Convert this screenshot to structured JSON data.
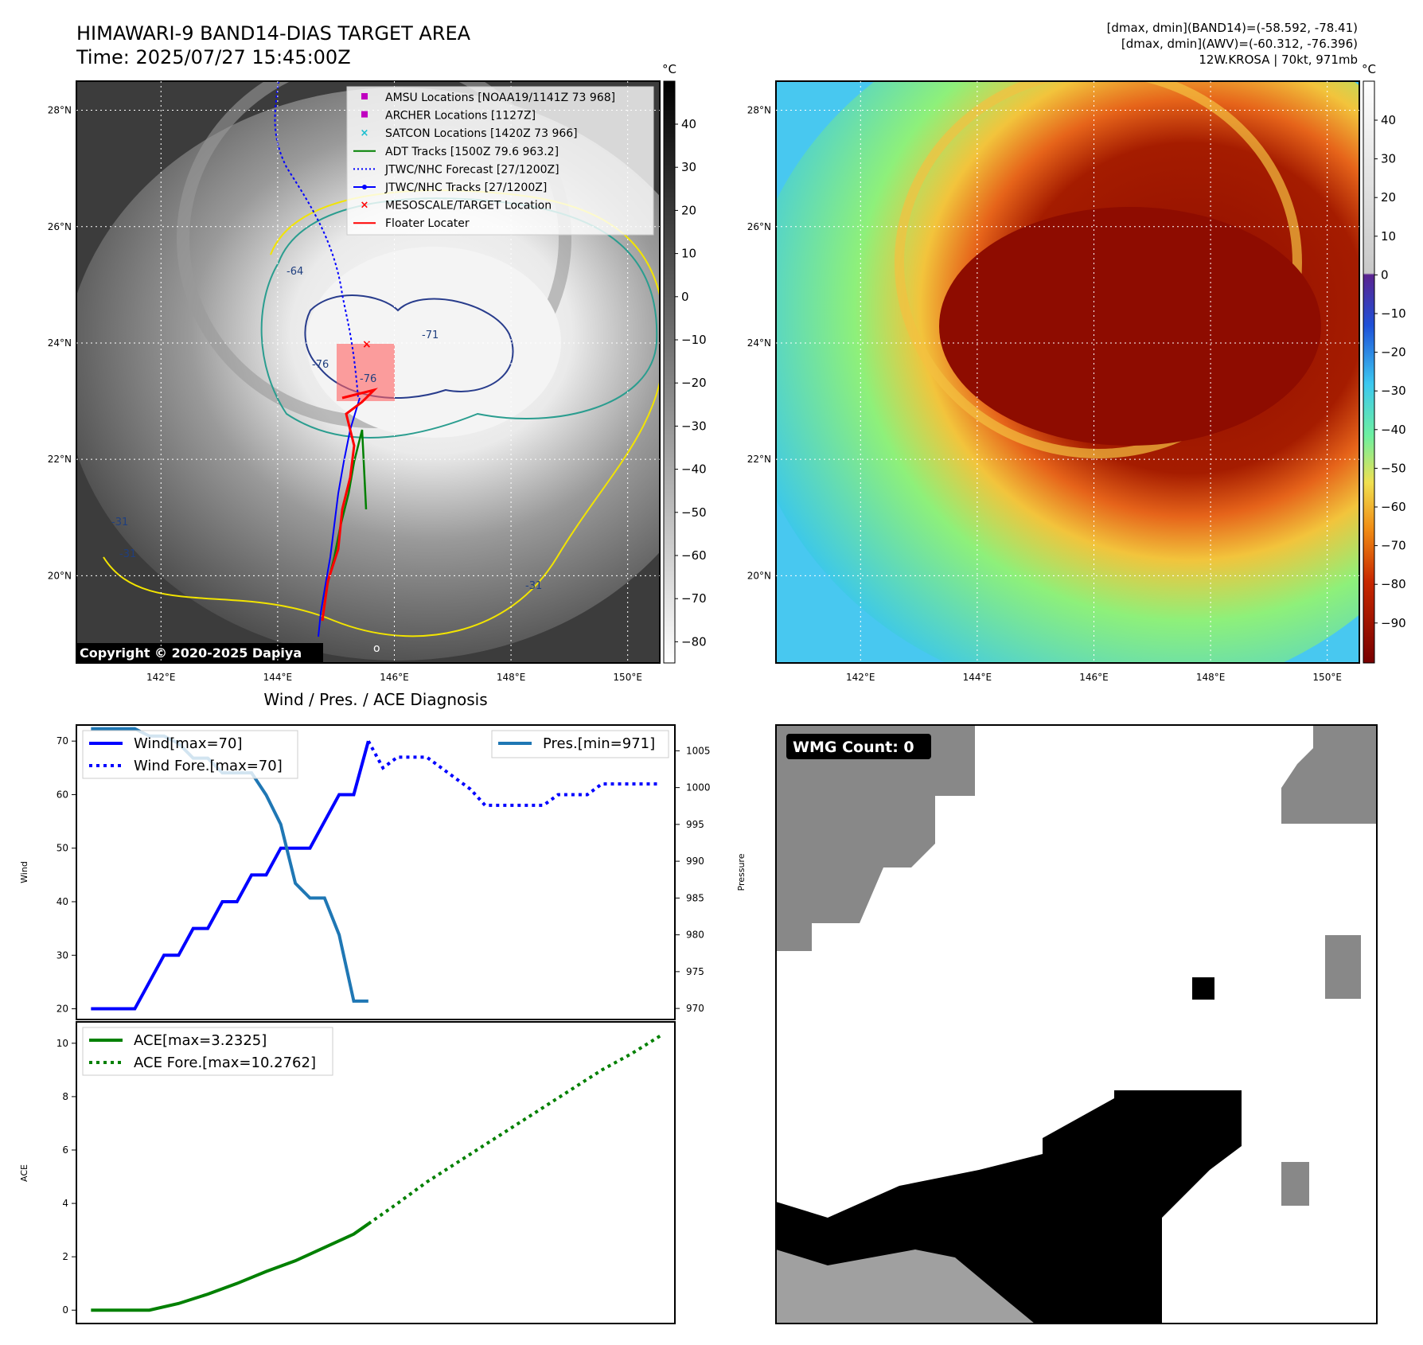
{
  "header": {
    "title_line1": "HIMAWARI-9 BAND14-DIAS TARGET AREA",
    "title_line2": "Time: 2025/07/27 15:45:00Z",
    "stats_line1": "[dmax, dmin](BAND14)=(-58.592, -78.41)",
    "stats_line2": "[dmax, dmin](AWV)=(-60.312, -76.396)",
    "stats_line3": "12W.KROSA | 70kt, 971mb"
  },
  "map_common": {
    "lon_labels": [
      "142°E",
      "144°E",
      "146°E",
      "148°E",
      "150°E"
    ],
    "lat_labels": [
      "28°N",
      "26°N",
      "24°N",
      "22°N",
      "20°N"
    ],
    "colorbar_unit": "°C"
  },
  "left_map": {
    "copyright": "Copyright © 2020-2025 Dapiya",
    "marker_glyph": "o",
    "colorbar_ticks": [
      "40",
      "30",
      "20",
      "10",
      "0",
      "−10",
      "−20",
      "−30",
      "−40",
      "−50",
      "−60",
      "−70",
      "−80"
    ],
    "contour_labels": [
      "-64",
      "-76",
      "-76",
      "-71",
      "-31",
      "-31",
      "-31"
    ],
    "legend": [
      {
        "label": "AMSU Locations [NOAA19/1141Z 73 968]",
        "marker": "square",
        "color": "#c000c0"
      },
      {
        "label": "ARCHER Locations [1127Z]",
        "marker": "square",
        "color": "#c000c0"
      },
      {
        "label": "SATCON Locations [1420Z 73 966]",
        "marker": "x",
        "color": "#17becf"
      },
      {
        "label": "ADT Tracks [1500Z 79.6 963.2]",
        "marker": "line",
        "color": "#008000"
      },
      {
        "label": "JTWC/NHC Forecast [27/1200Z]",
        "marker": "dotted",
        "color": "#0000ff"
      },
      {
        "label": "JTWC/NHC Tracks [27/1200Z]",
        "marker": "line-dot",
        "color": "#0000ff"
      },
      {
        "label": "MESOSCALE/TARGET Location",
        "marker": "x",
        "color": "#ff0000"
      },
      {
        "label": "Floater Locater",
        "marker": "line",
        "color": "#ff0000"
      }
    ]
  },
  "right_map": {
    "colorbar_ticks": [
      "40",
      "30",
      "20",
      "10",
      "0",
      "−10",
      "−20",
      "−30",
      "−40",
      "−50",
      "−60",
      "−70",
      "−80",
      "−90"
    ]
  },
  "wmg_panel": {
    "label": "WMG Count: 0"
  },
  "chart_data": [
    {
      "type": "line",
      "title": "Wind / Pres. / ACE Diagnosis",
      "ylabel": "Wind",
      "ylabel_right": "Pressure",
      "ylim": [
        18,
        73
      ],
      "ylim_right": [
        968.5,
        1008.5
      ],
      "xlim": [
        -1,
        40
      ],
      "yticks": [
        20,
        30,
        40,
        50,
        60,
        70
      ],
      "yticks_right": [
        970,
        975,
        980,
        985,
        990,
        995,
        1000,
        1005
      ],
      "series": [
        {
          "name": "Wind[max=70]",
          "style": "solid",
          "color": "#0000ff",
          "axis": "left",
          "x": [
            0,
            1,
            2,
            3,
            4,
            5,
            6,
            7,
            8,
            9,
            10,
            11,
            12,
            13,
            14,
            15,
            16,
            17,
            18,
            19
          ],
          "values": [
            20,
            20,
            20,
            20,
            25,
            30,
            30,
            35,
            35,
            40,
            40,
            45,
            45,
            50,
            50,
            50,
            55,
            60,
            60,
            70
          ]
        },
        {
          "name": "Wind Fore.[max=70]",
          "style": "dotted",
          "color": "#0000ff",
          "axis": "left",
          "x": [
            19,
            20,
            21,
            22,
            23,
            24,
            25,
            26,
            27,
            28,
            29,
            30,
            31,
            32,
            33,
            34,
            35,
            36,
            37,
            38,
            39
          ],
          "values": [
            70,
            65,
            67,
            67,
            67,
            65,
            63,
            61,
            58,
            58,
            58,
            58,
            58,
            60,
            60,
            60,
            62,
            62,
            62,
            62,
            62
          ]
        },
        {
          "name": "Pres.[min=971]",
          "style": "solid",
          "color": "#1f77b4",
          "axis": "right",
          "x": [
            0,
            1,
            2,
            3,
            4,
            5,
            6,
            7,
            8,
            9,
            10,
            11,
            12,
            13,
            14,
            15,
            16,
            17,
            18,
            19
          ],
          "values": [
            1008,
            1008,
            1008,
            1008,
            1007,
            1007,
            1006,
            1004,
            1004,
            1002,
            1002,
            1002,
            999,
            995,
            987,
            985,
            985,
            980,
            971,
            971
          ]
        }
      ]
    },
    {
      "type": "line",
      "ylabel": "ACE",
      "ylim": [
        -0.5,
        10.8
      ],
      "xlim": [
        -1,
        40
      ],
      "yticks": [
        0,
        2,
        4,
        6,
        8,
        10
      ],
      "series": [
        {
          "name": "ACE[max=3.2325]",
          "style": "solid",
          "color": "#008000",
          "x": [
            0,
            2,
            4,
            6,
            8,
            10,
            12,
            14,
            16,
            18,
            19
          ],
          "values": [
            0,
            0,
            0,
            0.25,
            0.6,
            1.0,
            1.45,
            1.85,
            2.35,
            2.85,
            3.2325
          ]
        },
        {
          "name": "ACE Fore.[max=10.2762]",
          "style": "dotted",
          "color": "#008000",
          "x": [
            19,
            21,
            23,
            25,
            27,
            29,
            31,
            33,
            35,
            37,
            39
          ],
          "values": [
            3.2325,
            4.0,
            4.8,
            5.5,
            6.2,
            6.9,
            7.6,
            8.3,
            9.0,
            9.6,
            10.2762
          ]
        }
      ]
    }
  ]
}
